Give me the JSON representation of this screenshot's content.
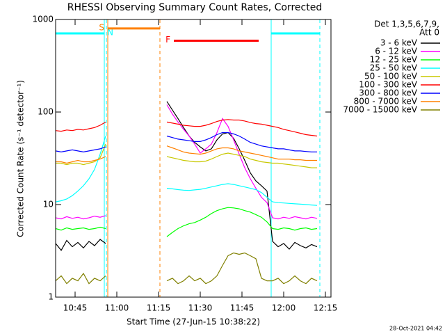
{
  "chart_data": {
    "type": "line",
    "title": "RHESSI Observing Summary Count Rates, Corrected",
    "x_label": "Start Time (27-Jun-15 10:38:22)",
    "y_label": "Corrected Count Rate (s⁻¹ detector⁻¹)",
    "footer": "28-Oct-2021 04:42",
    "legend_header": [
      "Det 1,3,5,6,7,9,",
      "Att 0"
    ],
    "legend_position": "right",
    "log_y": true,
    "xlim": [
      "10:38",
      "12:17"
    ],
    "xticks": [
      "10:45",
      "11:00",
      "11:15",
      "11:30",
      "11:45",
      "12:00",
      "12:15"
    ],
    "ylim": [
      1,
      1000
    ],
    "yticks": [
      1,
      10,
      100,
      1000
    ],
    "x": [
      "10:38",
      "10:40",
      "10:42",
      "10:44",
      "10:46",
      "10:48",
      "10:50",
      "10:52",
      "10:54",
      "10:56",
      "11:06",
      "11:18",
      "11:20",
      "11:22",
      "11:24",
      "11:26",
      "11:28",
      "11:30",
      "11:32",
      "11:34",
      "11:36",
      "11:38",
      "11:40",
      "11:42",
      "11:44",
      "11:46",
      "11:48",
      "11:50",
      "11:52",
      "11:54",
      "11:56",
      "11:58",
      "12:00",
      "12:02",
      "12:04",
      "12:06",
      "12:08",
      "12:10",
      "12:12"
    ],
    "series": [
      {
        "name": "3 - 6 keV",
        "color": "#000000",
        "values": [
          3.8,
          3.2,
          4.1,
          3.5,
          3.9,
          3.4,
          4.0,
          3.6,
          4.2,
          3.8,
          null,
          130,
          105,
          85,
          68,
          55,
          47,
          42,
          38,
          40,
          50,
          58,
          60,
          52,
          40,
          30,
          22,
          18,
          16,
          14,
          4.0,
          3.5,
          3.8,
          3.3,
          3.9,
          3.6,
          3.4,
          3.7,
          3.5
        ]
      },
      {
        "name": "6 - 12 keV",
        "color": "#ff00ff",
        "values": [
          7.2,
          7.0,
          7.4,
          7.1,
          7.3,
          7.0,
          7.2,
          7.5,
          7.3,
          7.6,
          null,
          120,
          95,
          78,
          65,
          55,
          45,
          36,
          40,
          45,
          60,
          85,
          70,
          50,
          35,
          25,
          19,
          15,
          12,
          10.5,
          7.2,
          7.0,
          7.3,
          7.1,
          7.4,
          7.2,
          7.0,
          7.3,
          7.1
        ]
      },
      {
        "name": "12 - 25 keV",
        "color": "#00ff00",
        "values": [
          5.5,
          5.3,
          5.6,
          5.4,
          5.5,
          5.6,
          5.4,
          5.5,
          5.7,
          5.5,
          null,
          4.5,
          5.0,
          5.5,
          5.9,
          6.2,
          6.4,
          6.8,
          7.3,
          8.0,
          8.6,
          9.0,
          9.3,
          9.2,
          9.0,
          8.6,
          8.3,
          7.8,
          7.3,
          6.5,
          5.5,
          5.4,
          5.6,
          5.5,
          5.3,
          5.5,
          5.6,
          5.4,
          5.5
        ]
      },
      {
        "name": "25 - 50 keV",
        "color": "#00ffff",
        "values": [
          10.7,
          11,
          11.5,
          12.5,
          14,
          16,
          19,
          24,
          35,
          55,
          null,
          15,
          14.8,
          14.5,
          14.3,
          14.2,
          14.4,
          14.6,
          15,
          15.5,
          16,
          16.5,
          16.8,
          16.5,
          16,
          15.5,
          15,
          14.5,
          13.5,
          12,
          10.7,
          10.5,
          10.4,
          10.3,
          10.2,
          10.1,
          10,
          9.9,
          9.8
        ]
      },
      {
        "name": "50 - 100 keV",
        "color": "#c8c800",
        "values": [
          28,
          28,
          27,
          28,
          28,
          27,
          28,
          29,
          32,
          45,
          null,
          33,
          32,
          31,
          30,
          29.5,
          29,
          29,
          29.5,
          31,
          33,
          35,
          36,
          35,
          34,
          33,
          31,
          30,
          29,
          28.5,
          28,
          28,
          27.5,
          27,
          26.5,
          26,
          25.5,
          25,
          25
        ]
      },
      {
        "name": "100 - 300 keV",
        "color": "#ff0000",
        "values": [
          63,
          62,
          64,
          63,
          65,
          64,
          66,
          68,
          72,
          78,
          null,
          78,
          76,
          74,
          72,
          71,
          70,
          70,
          72,
          75,
          79,
          82,
          83,
          82,
          82,
          80,
          77,
          75,
          74,
          72,
          70,
          68,
          65,
          63,
          61,
          59,
          57,
          56,
          55
        ]
      },
      {
        "name": "300 - 800 keV",
        "color": "#0000ff",
        "values": [
          38,
          37,
          38,
          39,
          38,
          37,
          38,
          39,
          40,
          42,
          null,
          55,
          53,
          51,
          50,
          49,
          48,
          48,
          50,
          53,
          57,
          60,
          60,
          58,
          55,
          51,
          47,
          45,
          43,
          42,
          41,
          40,
          40,
          39,
          38,
          38,
          37.5,
          37,
          37
        ]
      },
      {
        "name": "800 - 7000 keV",
        "color": "#ff8000",
        "values": [
          29,
          29,
          28,
          29,
          30,
          29,
          29,
          30,
          31,
          33,
          null,
          43,
          41,
          39,
          37,
          36,
          35.5,
          35,
          36,
          38,
          40,
          41,
          41,
          40,
          38,
          37,
          36,
          35,
          34,
          33,
          32,
          31,
          31,
          31,
          30.5,
          30.5,
          30,
          30,
          30
        ]
      },
      {
        "name": "7000 - 15000 keV",
        "color": "#808000",
        "values": [
          1.5,
          1.7,
          1.4,
          1.6,
          1.5,
          1.8,
          1.4,
          1.6,
          1.5,
          1.7,
          null,
          1.5,
          1.6,
          1.4,
          1.5,
          1.7,
          1.5,
          1.6,
          1.4,
          1.5,
          1.7,
          2.2,
          2.8,
          3.0,
          2.9,
          3.0,
          2.8,
          2.6,
          1.6,
          1.5,
          1.5,
          1.6,
          1.4,
          1.5,
          1.7,
          1.5,
          1.4,
          1.6,
          1.5
        ]
      }
    ],
    "intervals": [
      {
        "color": "#00ffff",
        "start": "10:38",
        "end": "10:55:30",
        "level": 708,
        "label": "N",
        "label_side": "right"
      },
      {
        "color": "#00ffff",
        "start": "11:55:30",
        "end": "12:13",
        "level": 708
      },
      {
        "color": "#ff8000",
        "start": "10:56:45",
        "end": "11:15:30",
        "level": 800,
        "label": "S",
        "label_side": "left"
      },
      {
        "color": "#ff0000",
        "start": "11:20:30",
        "end": "11:51",
        "level": 590,
        "label": "F",
        "label_side": "left"
      }
    ],
    "vlines": [
      {
        "x": "10:55:30",
        "color": "#00ffff",
        "dashed": false
      },
      {
        "x": "10:56:15",
        "color": "#00ffff",
        "dashed": true
      },
      {
        "x": "10:56:45",
        "color": "#ff8000",
        "dashed": false
      },
      {
        "x": "11:15:30",
        "color": "#ff8000",
        "dashed": true
      },
      {
        "x": "11:55:30",
        "color": "#00ffff",
        "dashed": false
      },
      {
        "x": "12:13",
        "color": "#00ffff",
        "dashed": true
      }
    ]
  }
}
